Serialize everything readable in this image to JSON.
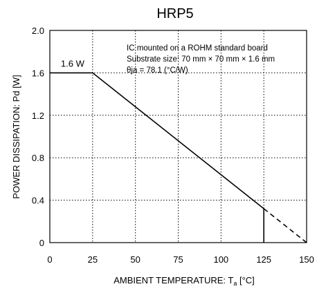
{
  "chart_data": {
    "type": "line",
    "title": "HRP5",
    "xlabel": "AMBIENT TEMPERATURE: Ta [°C]",
    "xlabel_main": "AMBIENT TEMPERATURE: T",
    "xlabel_sub": "a",
    "xlabel_unit": " [°C]",
    "ylabel": "POWER DISSIPATION: Pd [W]",
    "xlim": [
      0,
      150
    ],
    "ylim": [
      0,
      2.0
    ],
    "x_ticks": [
      0,
      25,
      50,
      75,
      100,
      125,
      150
    ],
    "y_ticks": [
      0,
      0.4,
      0.8,
      1.2,
      1.6,
      2.0
    ],
    "y_tick_labels": [
      "0",
      "0.4",
      "0.8",
      "1.2",
      "1.6",
      "2.0"
    ],
    "grid": true,
    "series": [
      {
        "x": [
          0,
          25,
          125
        ],
        "y": [
          1.6,
          1.6,
          0.32
        ],
        "style": "solid"
      },
      {
        "x": [
          125,
          150
        ],
        "y": [
          0.32,
          0
        ],
        "style": "dashed"
      },
      {
        "x": [
          125,
          125
        ],
        "y": [
          0.32,
          0
        ],
        "style": "solid"
      }
    ],
    "annotations": [
      {
        "text": "1.6 W",
        "x": 12.5,
        "y": 1.6
      }
    ],
    "notes": [
      "IC mounted on a ROHM standard board",
      "Substrate size: 70 mm × 70 mm × 1.6 mm",
      "θja = 78.1 (°C/W)"
    ]
  }
}
